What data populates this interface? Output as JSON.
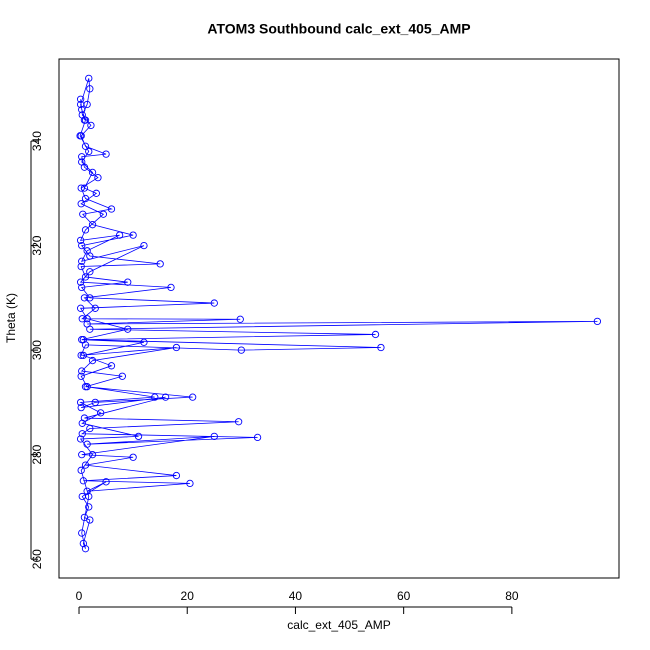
{
  "chart_data": {
    "type": "line",
    "title": "ATOM3 Southbound calc_ext_405_AMP",
    "x_label": "calc_ext_405_AMP",
    "y_label": "Theta (K)",
    "markers": true,
    "color": "#0000ff",
    "xlim": [
      -3.7,
      99.8
    ],
    "ylim": [
      256.4,
      355.7
    ],
    "xticks": [
      0,
      20,
      40,
      60,
      80
    ],
    "yticks": [
      260,
      280,
      300,
      320,
      340
    ],
    "x": [
      0.3,
      0.5,
      1.2,
      0.2,
      1.8,
      0.5,
      2.5,
      1,
      3.2,
      0.4,
      4.5,
      1.2,
      0.3,
      7.5,
      1.5,
      0.5,
      12,
      2,
      0.3,
      17,
      1,
      3,
      0.6,
      29.8,
      1.5,
      95.8,
      2,
      54.8,
      0.8,
      55.8,
      30,
      1.2,
      0.4,
      18,
      2.5,
      0.5,
      8,
      1.2,
      21,
      3,
      0.4,
      16,
      1,
      29.5,
      2,
      0.6,
      33,
      1.5,
      25,
      0.5,
      10,
      1.2,
      18,
      0.8,
      20.5,
      1.5,
      5,
      0.6,
      1.8,
      1,
      2,
      0.8,
      1.2,
      0.5,
      1.8,
      0.4,
      2.5,
      0.3,
      11,
      0.6,
      4,
      0.3,
      14,
      1.5,
      0.4,
      6,
      0.8,
      12,
      0.5,
      9,
      1.5,
      0.3,
      25,
      2,
      0.5,
      9,
      1.2,
      0.4,
      15,
      2,
      0.5,
      10,
      2.5,
      0.7,
      6,
      1.2,
      0.4,
      3.5,
      1,
      0.5,
      5,
      1.2,
      0.4,
      2.2,
      0.6,
      1.5,
      2,
      1.8,
      0.3,
      1
    ],
    "values": [
      348,
      346,
      344,
      341,
      338,
      336,
      334,
      331,
      330,
      328,
      326,
      323,
      321,
      322,
      319,
      317,
      320,
      315,
      313,
      312,
      310,
      308,
      306,
      305.9,
      305,
      305.5,
      304,
      303,
      302,
      300.5,
      300,
      301,
      299,
      300.5,
      298,
      296,
      295,
      293,
      291,
      290,
      289,
      291,
      287,
      286.3,
      285,
      284,
      283.3,
      282,
      283.5,
      280,
      279.5,
      278,
      276,
      275,
      274.5,
      273,
      274.8,
      272,
      270,
      268,
      267.5,
      263,
      262,
      265,
      272,
      277,
      280,
      283,
      283.5,
      286,
      288,
      290,
      291,
      293,
      295,
      297,
      299,
      301.5,
      302,
      304,
      306,
      308,
      309,
      310,
      312,
      313,
      314,
      316,
      316.5,
      318,
      320,
      322,
      324,
      326,
      327,
      329,
      331,
      333,
      335,
      337,
      337.5,
      339,
      341,
      343,
      345,
      347,
      350,
      352,
      347,
      344
    ]
  }
}
